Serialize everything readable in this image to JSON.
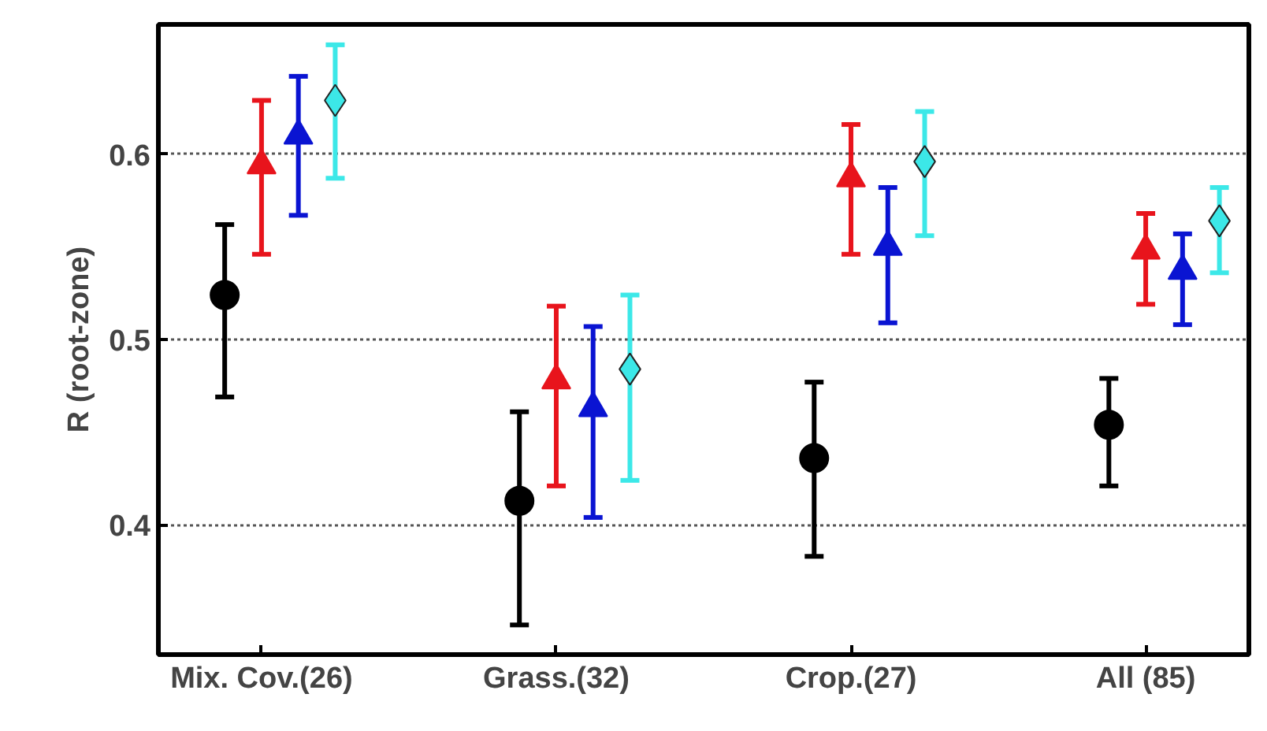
{
  "chart_data": {
    "type": "scatter",
    "ylabel": "R (root-zone)",
    "ylim": [
      0.33,
      0.67
    ],
    "categories": [
      "Mix. Cov.(26)",
      "Grass.(32)",
      "Crop.(27)",
      "All (85)"
    ],
    "yticks": [
      0.4,
      0.5,
      0.6
    ],
    "grid": "y",
    "series": [
      {
        "color": "#000000",
        "marker": "circle",
        "values": [
          0.524,
          0.413,
          0.436,
          0.454
        ],
        "errors": [
          [
            0.469,
            0.562
          ],
          [
            0.346,
            0.461
          ],
          [
            0.383,
            0.477
          ],
          [
            0.421,
            0.479
          ]
        ]
      },
      {
        "color": "#e8141c",
        "marker": "triangle",
        "values": [
          0.594,
          0.478,
          0.587,
          0.548
        ],
        "errors": [
          [
            0.546,
            0.629
          ],
          [
            0.421,
            0.518
          ],
          [
            0.546,
            0.616
          ],
          [
            0.519,
            0.568
          ]
        ]
      },
      {
        "color": "#0a14d2",
        "marker": "triangle",
        "values": [
          0.61,
          0.463,
          0.55,
          0.537
        ],
        "errors": [
          [
            0.567,
            0.642
          ],
          [
            0.404,
            0.507
          ],
          [
            0.509,
            0.582
          ],
          [
            0.508,
            0.557
          ]
        ]
      },
      {
        "color": "#3ce8e8",
        "marker": "diamond",
        "values": [
          0.629,
          0.484,
          0.596,
          0.564
        ],
        "errors": [
          [
            0.587,
            0.659
          ],
          [
            0.424,
            0.524
          ],
          [
            0.556,
            0.623
          ],
          [
            0.536,
            0.582
          ]
        ]
      }
    ]
  }
}
